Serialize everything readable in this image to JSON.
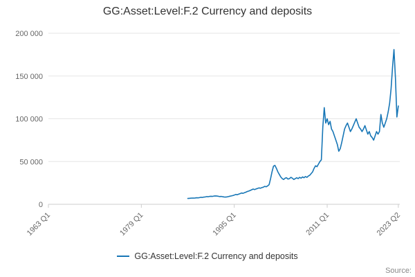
{
  "title": "GG:Asset:Level:F.2 Currency and deposits",
  "legend": {
    "label": "GG:Asset:Level:F.2 Currency and deposits"
  },
  "source_label": "Source:",
  "colors": {
    "line": "#1776b6",
    "grid": "#e6e6e6",
    "axis_line": "#cccccc",
    "tick_text": "#666666",
    "title_text": "#333333"
  },
  "chart_data": {
    "type": "line",
    "title": "GG:Asset:Level:F.2 Currency and deposits",
    "xlabel": "",
    "ylabel": "",
    "grid": "horizontal-only",
    "legend_position": "bottom-center",
    "x_axis": {
      "unit": "year-quarter",
      "range": [
        1963.0,
        2023.5
      ],
      "ticks": [
        {
          "year": 1963.0,
          "label": "1963 Q1"
        },
        {
          "year": 1979.0,
          "label": "1979 Q1"
        },
        {
          "year": 1995.0,
          "label": "1995 Q1"
        },
        {
          "year": 2011.0,
          "label": "2011 Q1"
        },
        {
          "year": 2023.25,
          "label": "2023 Q2"
        }
      ]
    },
    "y_axis": {
      "range": [
        0,
        200000
      ],
      "ticks": [
        {
          "value": 0,
          "label": "0"
        },
        {
          "value": 50000,
          "label": "50 000"
        },
        {
          "value": 100000,
          "label": "100 000"
        },
        {
          "value": 150000,
          "label": "150 000"
        },
        {
          "value": 200000,
          "label": "200 000"
        }
      ]
    },
    "series": [
      {
        "name": "GG:Asset:Level:F.2 Currency and deposits",
        "period": "quarterly",
        "start_year": 1987,
        "start_quarter": 1,
        "values": [
          6800,
          7000,
          7100,
          7300,
          7200,
          7400,
          7600,
          7500,
          7800,
          8200,
          8000,
          8400,
          8600,
          9000,
          8800,
          9200,
          9400,
          9200,
          9600,
          9800,
          9600,
          9400,
          9000,
          9200,
          8800,
          8600,
          8400,
          8700,
          9000,
          9500,
          9800,
          10200,
          10800,
          11500,
          11200,
          11800,
          12500,
          13200,
          12800,
          13500,
          14200,
          15000,
          15500,
          16200,
          17000,
          17800,
          17200,
          18000,
          18500,
          19200,
          18800,
          19500,
          20000,
          21000,
          20500,
          21500,
          23000,
          30000,
          38000,
          44500,
          45500,
          42000,
          38000,
          35000,
          32000,
          30000,
          29000,
          30500,
          31000,
          29500,
          30000,
          31500,
          30500,
          29000,
          30000,
          31000,
          30000,
          31500,
          30500,
          32000,
          31000,
          32500,
          31500,
          33000,
          34000,
          36000,
          38000,
          42000,
          45000,
          44000,
          47000,
          50000,
          52000,
          90000,
          113000,
          95000,
          100000,
          93000,
          97000,
          88000,
          85000,
          80000,
          75000,
          70000,
          62000,
          65000,
          72000,
          80000,
          88000,
          92000,
          95000,
          90000,
          85000,
          88000,
          92000,
          96000,
          100000,
          95000,
          90000,
          88000,
          85000,
          88000,
          92000,
          87000,
          82000,
          85000,
          80000,
          78000,
          75000,
          80000,
          85000,
          82000,
          85000,
          105000,
          95000,
          90000,
          95000,
          100000,
          108000,
          118000,
          135000,
          160000,
          181000,
          148000,
          102000,
          115000
        ]
      }
    ]
  }
}
